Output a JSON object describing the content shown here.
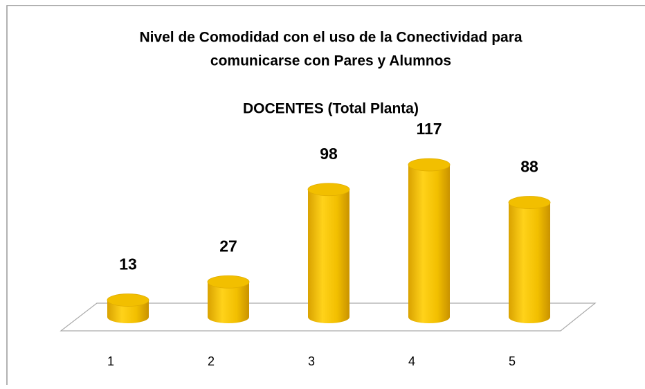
{
  "chart_data": {
    "type": "bar3d",
    "title": [
      "Nivel de Comodidad con el uso de la Conectividad para",
      "comunicarse con Pares y Alumnos"
    ],
    "subtitle": "DOCENTES (Total Planta)",
    "categories": [
      "1",
      "2",
      "3",
      "4",
      "5"
    ],
    "values": [
      13,
      27,
      98,
      117,
      88
    ],
    "color": "#f2bf00"
  }
}
